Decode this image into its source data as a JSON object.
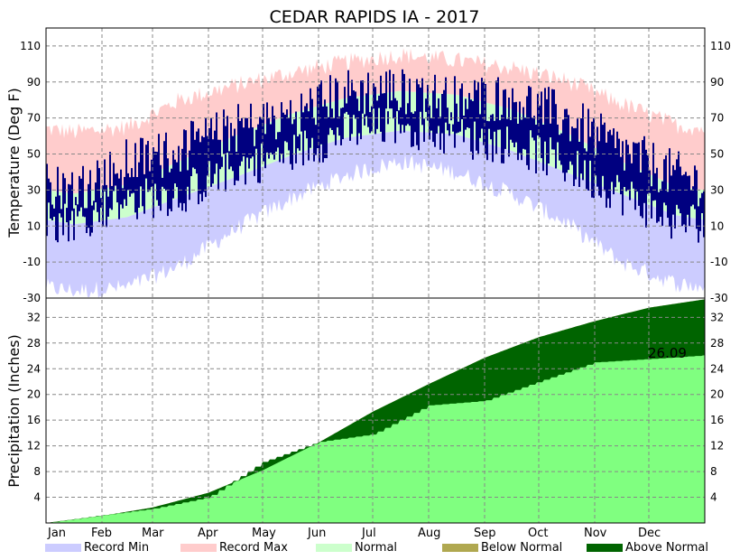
{
  "title": "CEDAR RAPIDS IA - 2017",
  "colors": {
    "record_min": "#ccccff",
    "record_max": "#ffcccc",
    "normal": "#ccffcc",
    "observed": "#000080",
    "precip_actual": "#80ff80",
    "below_normal": "#b0a850",
    "above_normal": "#006400"
  },
  "chart_data": [
    {
      "type": "area",
      "panel": "temperature",
      "ylabel": "Temperature (Deg F)",
      "ylim": [
        -30,
        120
      ],
      "yticks": [
        -30,
        -10,
        10,
        30,
        50,
        70,
        90,
        110
      ],
      "xlim_days": [
        0,
        365
      ],
      "months": [
        "Jan",
        "Feb",
        "Mar",
        "Apr",
        "May",
        "Jun",
        "Jul",
        "Aug",
        "Sep",
        "Oct",
        "Nov",
        "Dec"
      ],
      "grid": true,
      "record_max_monthly": [
        62,
        65,
        80,
        88,
        95,
        101,
        105,
        102,
        98,
        91,
        78,
        66
      ],
      "record_min_monthly": [
        -26,
        -24,
        -12,
        8,
        25,
        38,
        46,
        40,
        28,
        12,
        -10,
        -22
      ],
      "normal_high_monthly": [
        28,
        33,
        46,
        60,
        72,
        81,
        85,
        83,
        75,
        62,
        46,
        32
      ],
      "normal_low_monthly": [
        11,
        15,
        26,
        37,
        49,
        59,
        63,
        61,
        52,
        40,
        28,
        16
      ],
      "observed_high_monthly": [
        30,
        45,
        52,
        64,
        72,
        84,
        86,
        80,
        82,
        70,
        52,
        38
      ],
      "observed_low_monthly": [
        13,
        24,
        28,
        42,
        50,
        62,
        66,
        59,
        56,
        44,
        28,
        12
      ]
    },
    {
      "type": "area",
      "panel": "precipitation",
      "ylabel": "Precipitation (Inches)",
      "ylim": [
        0,
        35
      ],
      "yticks": [
        4,
        8,
        12,
        16,
        20,
        24,
        28,
        32
      ],
      "grid": true,
      "normal_cumulative_month_end": [
        1.1,
        2.4,
        4.7,
        8.2,
        12.5,
        17.3,
        21.6,
        25.7,
        28.9,
        31.4,
        33.5,
        34.8
      ],
      "actual_cumulative_month_end": [
        1.2,
        2.2,
        4.0,
        9.5,
        12.6,
        13.8,
        18.3,
        19.0,
        22.0,
        25.0,
        25.5,
        26.09
      ],
      "annotation": "26.09"
    }
  ],
  "legend": [
    {
      "label": "Record Min",
      "color_key": "record_min"
    },
    {
      "label": "Record Max",
      "color_key": "record_max"
    },
    {
      "label": "Normal",
      "color_key": "normal"
    },
    {
      "label": "Below Normal",
      "color_key": "below_normal"
    },
    {
      "label": "Above Normal",
      "color_key": "above_normal"
    }
  ]
}
